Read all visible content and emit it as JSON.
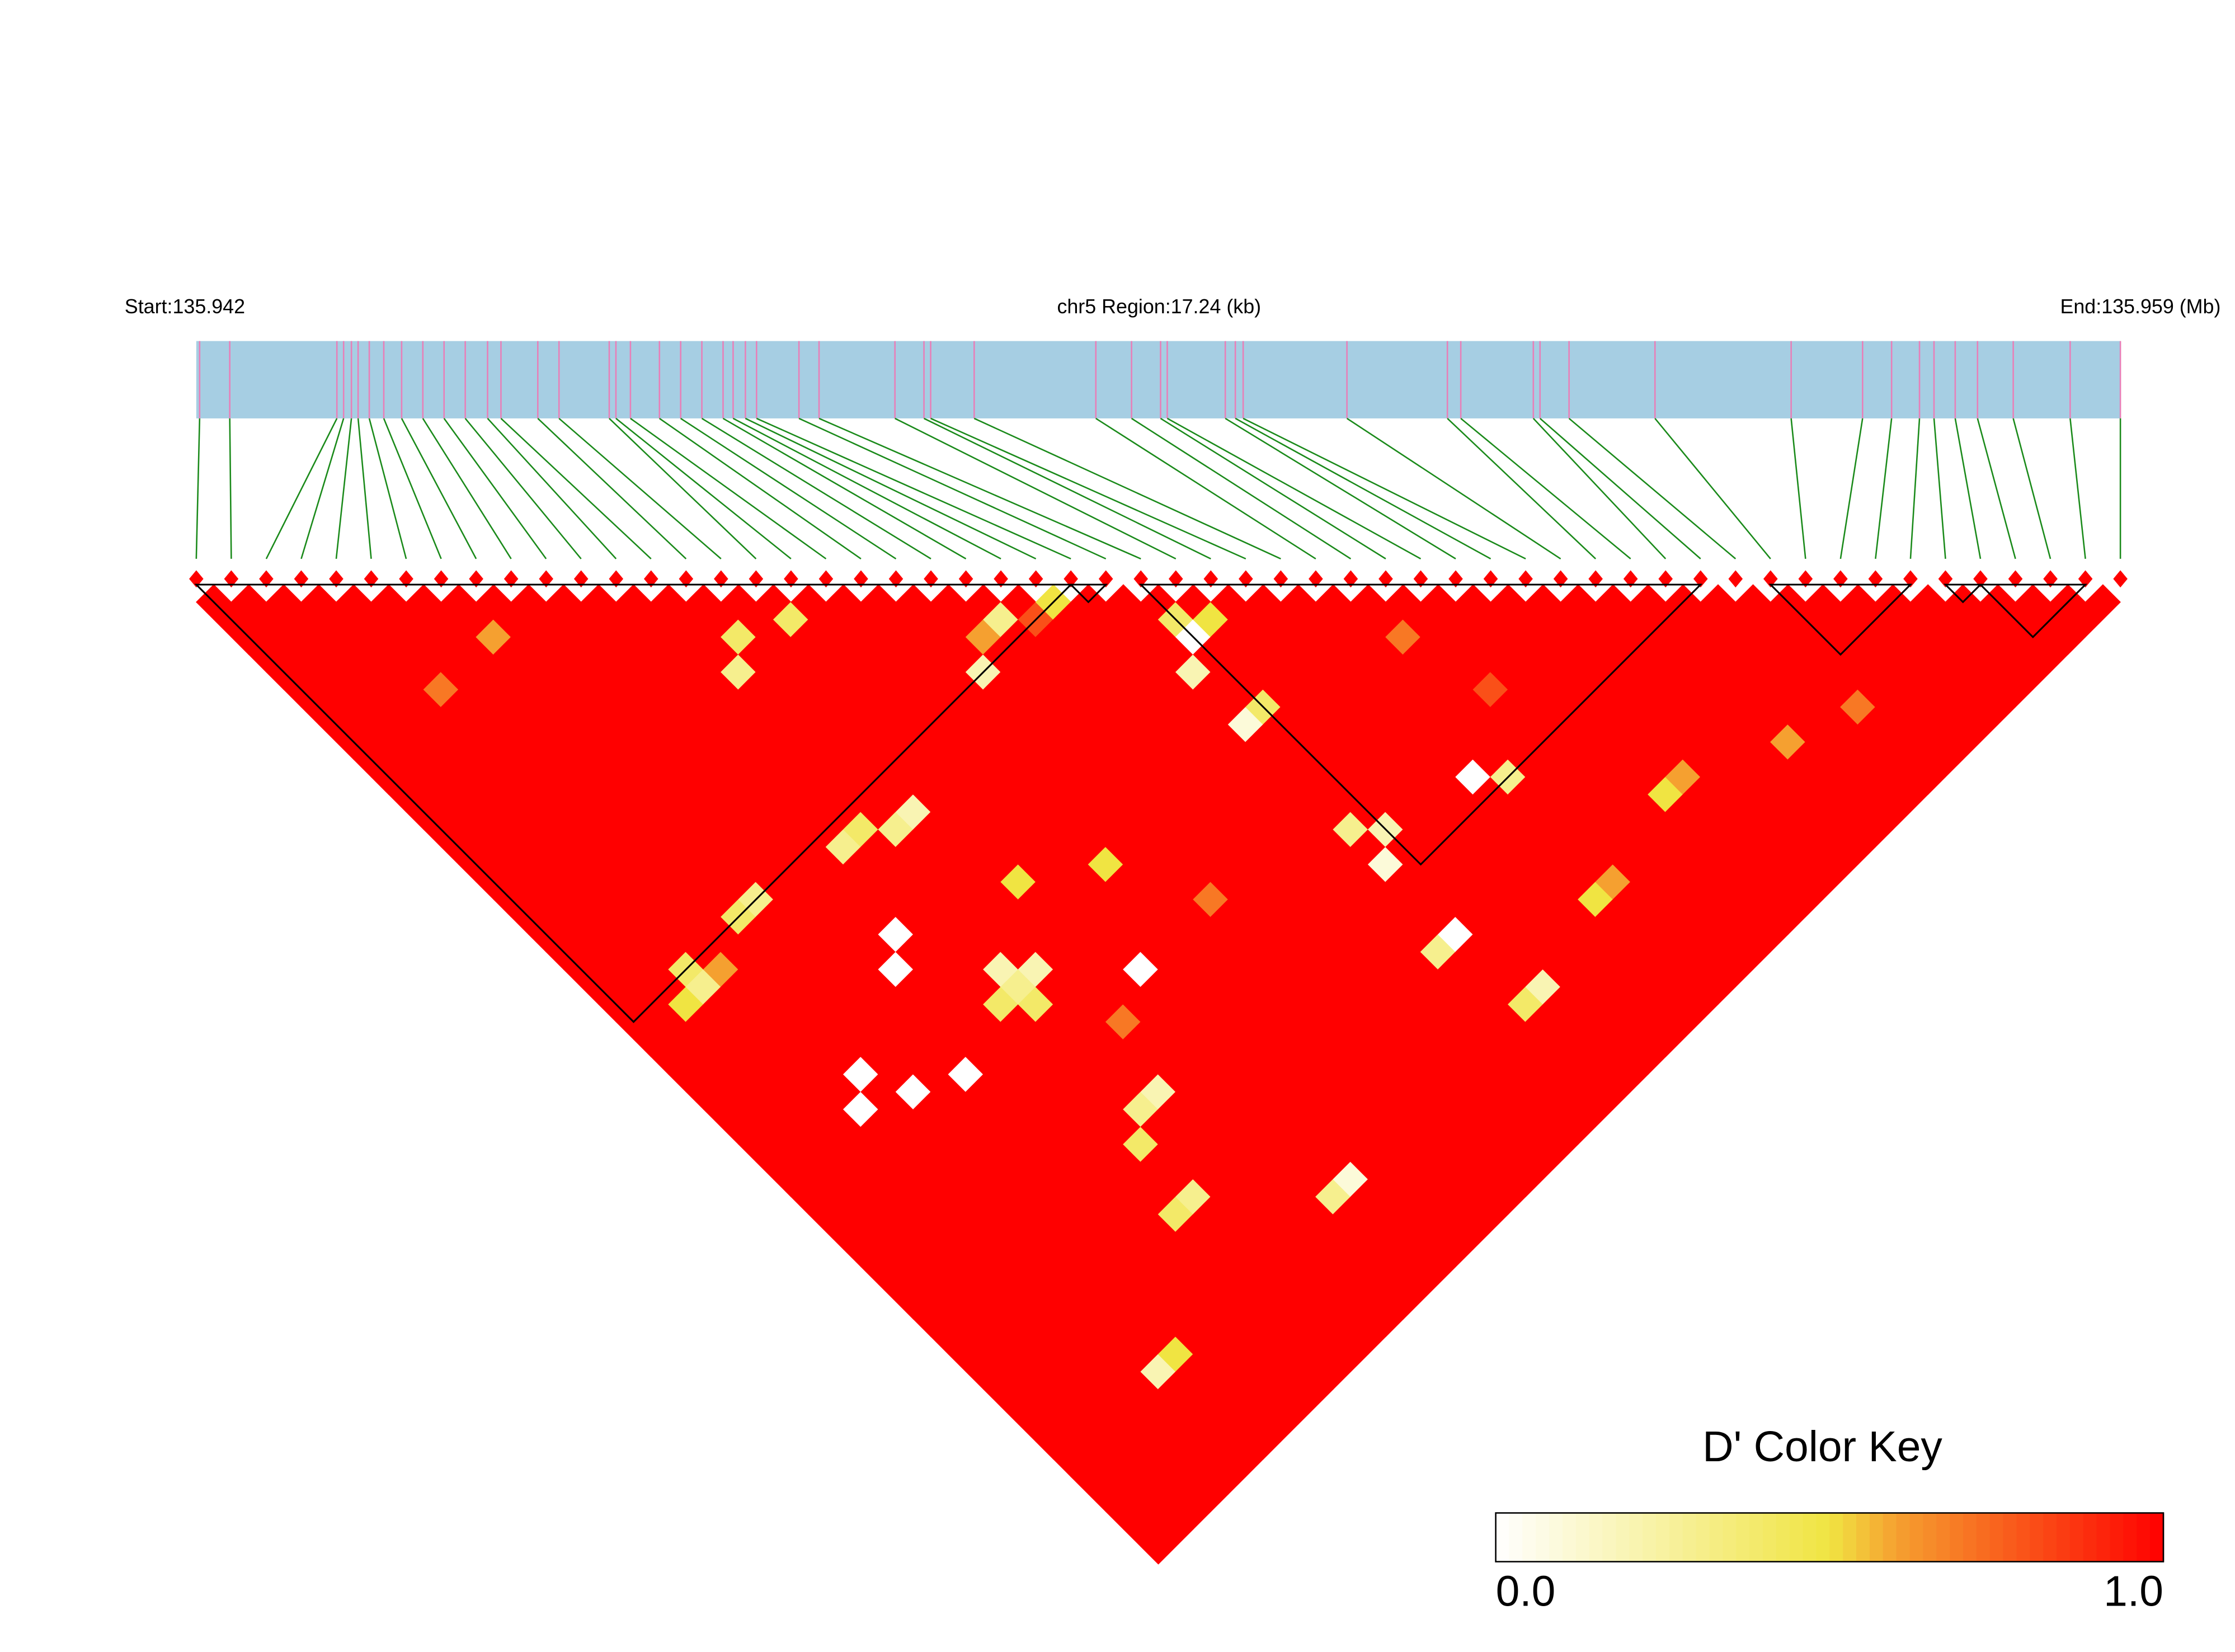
{
  "chart_data": {
    "type": "heatmap",
    "start_label": "Start:135.942",
    "region_label": "chr5 Region:17.24 (kb)",
    "end_label": "End:135.959 (Mb)",
    "key_title": "D' Color Key",
    "key_ticks": [
      {
        "value": 0,
        "label": "0.0"
      },
      {
        "value": 1,
        "label": "1.0"
      }
    ],
    "xlim": [
      0,
      17.24
    ],
    "positions": [
      0.03,
      0.3,
      1.26,
      1.32,
      1.39,
      1.45,
      1.55,
      1.68,
      1.84,
      2.03,
      2.22,
      2.41,
      2.61,
      2.73,
      3.06,
      3.25,
      3.7,
      3.76,
      3.89,
      4.15,
      4.34,
      4.53,
      4.72,
      4.81,
      4.92,
      5.02,
      5.4,
      5.58,
      6.26,
      6.52,
      6.58,
      6.97,
      8.06,
      8.38,
      8.64,
      8.7,
      9.22,
      9.31,
      9.38,
      10.31,
      11.21,
      11.33,
      11.98,
      12.04,
      12.3,
      13.07,
      14.29,
      14.93,
      15.19,
      15.44,
      15.57,
      15.76,
      15.96,
      16.28,
      16.79,
      17.24
    ],
    "colors": {
      "low": "#ffffff",
      "mid": "#f0e442",
      "high_mid": "#f5a030",
      "high": "#ff0000"
    },
    "blocks": [
      [
        0,
        25
      ],
      [
        25,
        26
      ],
      [
        27,
        43
      ],
      [
        45,
        49
      ],
      [
        50,
        51
      ],
      [
        51,
        54
      ]
    ],
    "dprime": [
      [
        1,
        1,
        1,
        1,
        1,
        1,
        1,
        1,
        1,
        1,
        1,
        1,
        1,
        1,
        1,
        1,
        1,
        1,
        1,
        1,
        1,
        1,
        1,
        1,
        1,
        1,
        1,
        1,
        1,
        1,
        1,
        1,
        1,
        1,
        1,
        1,
        1,
        1,
        1,
        1,
        1,
        1,
        1,
        1,
        1,
        1,
        1,
        1,
        1,
        1,
        1,
        1,
        1,
        1,
        1
      ],
      [
        1,
        1,
        1,
        1,
        1,
        1,
        1,
        1,
        1,
        1,
        1,
        1,
        1,
        1,
        1,
        1,
        1,
        1,
        1,
        1,
        1,
        1,
        1,
        1,
        1,
        1,
        1,
        1,
        1,
        1,
        1,
        1,
        1,
        1,
        1,
        1,
        1,
        1,
        1,
        1,
        1,
        1,
        1,
        1,
        1,
        1,
        1,
        1,
        1,
        1,
        1,
        1,
        1,
        1
      ],
      [
        1,
        1,
        1,
        1,
        1,
        1,
        1,
        1,
        1,
        1,
        1,
        1,
        1,
        1,
        1,
        1,
        1,
        1,
        1,
        1,
        1,
        1,
        1,
        0.5,
        1,
        1,
        1,
        1,
        1,
        1,
        1,
        1,
        1,
        1,
        1,
        1,
        1,
        1,
        1,
        1,
        1,
        1,
        1,
        1,
        1,
        1,
        1,
        1,
        1,
        1,
        1,
        1,
        1
      ],
      [
        1,
        1,
        1,
        1,
        1,
        1,
        1,
        1,
        1,
        1,
        1,
        1,
        1,
        1,
        1,
        1,
        1,
        1,
        1,
        1,
        1,
        0.4,
        0.3,
        1,
        1,
        1,
        1,
        1,
        1,
        1,
        1,
        1,
        1,
        1,
        1,
        1,
        1,
        1,
        1,
        1,
        1,
        1,
        1,
        1,
        1,
        1,
        1,
        1,
        1,
        1,
        1,
        1
      ],
      [
        1,
        1,
        1,
        1,
        1,
        0.7,
        1,
        1,
        1,
        1,
        1,
        1,
        1,
        1,
        1,
        1,
        1,
        1,
        1,
        1,
        1,
        0.6,
        1,
        1,
        1,
        1,
        1,
        1,
        1,
        0,
        1,
        1,
        1,
        1,
        1,
        1,
        1,
        1,
        1,
        1,
        1,
        1,
        1,
        1,
        1,
        1,
        1,
        1,
        1,
        1,
        1
      ],
      [
        1,
        1,
        1,
        1,
        1,
        1,
        1,
        1,
        1,
        1,
        1,
        1,
        1,
        1,
        1,
        1,
        1,
        1,
        1,
        1,
        1,
        1,
        1,
        1,
        1,
        1,
        1,
        0,
        1,
        1,
        1,
        1,
        1,
        1,
        1,
        1,
        1,
        1,
        1,
        1,
        1,
        1,
        1,
        1,
        0.2,
        1,
        1,
        1,
        1,
        1
      ],
      [
        1,
        1,
        1,
        1,
        1,
        1,
        1,
        1,
        1,
        1,
        1,
        1,
        1,
        1,
        1,
        1,
        1,
        1,
        0.4,
        1,
        1,
        1,
        1,
        1,
        1,
        1,
        1,
        1,
        0,
        1,
        1,
        1,
        1,
        1,
        1,
        1,
        1,
        1,
        1,
        1,
        1,
        1,
        1,
        0.5,
        1,
        1,
        1,
        1,
        1
      ],
      [
        1,
        1,
        0.6,
        1,
        1,
        1,
        1,
        1,
        1,
        1,
        1,
        1,
        1,
        1,
        1,
        1,
        1,
        0.3,
        1,
        1,
        1,
        1,
        1,
        1,
        1,
        1,
        1,
        1,
        1,
        1,
        1,
        1,
        1,
        1,
        1,
        1,
        1,
        1,
        1,
        1,
        1,
        1,
        1,
        1,
        1,
        1,
        1,
        1
      ],
      [
        1,
        1,
        1,
        1,
        1,
        1,
        1,
        1,
        1,
        1,
        1,
        1,
        1,
        1,
        1,
        1,
        1,
        1,
        1,
        1,
        1,
        1,
        1,
        1,
        1,
        1,
        1,
        0,
        1,
        1,
        1,
        1,
        1,
        1,
        1,
        1,
        1,
        1,
        1,
        1,
        1,
        1,
        1,
        1,
        1,
        1,
        1
      ],
      [
        1,
        1,
        1,
        1,
        1,
        1,
        1,
        1,
        1,
        1,
        1,
        1,
        1,
        1,
        1,
        1,
        1,
        1,
        1,
        1,
        1,
        0,
        1,
        1,
        1,
        1,
        1,
        1,
        1,
        1,
        1,
        1,
        1,
        1,
        1,
        1,
        1,
        1,
        1,
        1,
        1,
        1,
        1,
        1,
        1,
        1
      ],
      [
        1,
        1,
        1,
        1,
        1,
        1,
        1,
        1,
        1,
        1,
        1,
        1,
        1,
        1,
        1,
        1,
        1,
        1,
        1,
        0,
        1,
        1,
        1,
        1,
        1,
        1,
        1,
        1,
        1,
        1,
        1,
        1,
        1,
        1,
        1,
        0.4,
        1,
        1,
        1,
        1,
        1,
        1,
        1,
        1,
        1
      ],
      [
        1,
        1,
        1,
        1,
        1,
        1,
        1,
        1,
        1,
        1,
        1,
        1,
        1,
        1,
        0.3,
        1,
        1,
        1,
        1,
        1,
        1,
        1,
        1,
        0.4,
        1,
        1,
        1,
        1,
        1,
        1,
        1,
        0.4,
        1,
        1,
        0.3,
        1,
        1,
        1,
        1,
        1,
        1,
        1,
        1,
        1
      ],
      [
        1,
        1,
        1,
        1,
        1,
        1,
        1,
        1,
        1,
        1,
        1,
        1,
        1,
        0.4,
        1,
        1,
        1,
        1,
        1,
        1,
        1,
        0.2,
        0.3,
        0.4,
        1,
        1,
        1,
        1,
        1,
        0.3,
        1,
        1,
        1,
        1,
        1,
        1,
        1,
        1,
        1,
        1,
        1,
        1,
        1
      ],
      [
        1,
        1,
        1,
        1,
        0.3,
        1,
        1,
        1,
        1,
        1,
        1,
        1,
        1,
        0.3,
        1,
        1,
        1,
        1,
        1,
        1,
        1,
        0.2,
        1,
        1,
        1,
        1,
        1,
        1,
        0.2,
        1,
        1,
        1,
        1,
        1,
        1,
        1,
        1,
        1,
        1,
        1,
        1,
        1
      ],
      [
        1,
        1,
        0.4,
        1,
        1,
        1,
        1,
        1,
        1,
        1,
        1,
        1,
        0.2,
        1,
        1,
        1,
        1,
        1,
        1,
        1,
        1,
        1,
        1,
        1,
        0.7,
        1,
        1,
        1,
        1,
        1,
        1,
        1,
        1,
        1,
        1,
        1,
        1,
        1,
        1,
        1,
        1
      ],
      [
        1,
        1,
        1,
        1,
        1,
        1,
        1,
        1,
        1,
        1,
        1,
        1,
        1,
        1,
        1,
        1,
        0.5,
        1,
        1,
        1,
        1,
        1,
        1,
        1,
        1,
        1,
        1,
        1,
        1,
        1,
        1,
        1,
        1,
        1,
        0.3,
        1,
        1,
        1,
        1,
        1
      ],
      [
        1,
        0.4,
        1,
        1,
        1,
        1,
        1,
        1,
        1,
        1,
        1,
        1,
        1,
        1,
        1,
        1,
        1,
        1,
        1,
        1,
        1,
        0,
        1,
        1,
        1,
        1,
        1,
        1,
        1,
        1,
        1,
        1,
        1,
        0.1,
        1,
        1,
        1,
        1,
        1
      ],
      [
        1,
        1,
        1,
        1,
        1,
        1,
        1,
        1,
        1,
        1,
        1,
        1,
        1,
        1,
        1,
        1,
        1,
        1,
        1,
        1,
        1,
        1,
        1,
        1,
        1,
        1,
        1,
        1,
        1,
        1,
        1,
        1,
        1,
        1,
        1,
        1,
        1,
        1
      ],
      [
        1,
        1,
        1,
        1,
        1,
        1,
        1,
        1,
        1,
        1,
        1,
        1,
        1,
        1,
        1,
        0.5,
        1,
        1,
        1,
        1,
        1,
        1,
        1,
        1,
        1,
        1,
        1,
        1,
        1,
        1,
        1,
        1,
        1,
        1,
        1,
        1,
        1
      ],
      [
        1,
        1,
        1,
        1,
        1,
        1,
        1,
        1,
        1,
        1,
        1,
        1,
        1,
        1,
        1,
        1,
        1,
        1,
        1,
        1,
        1,
        1,
        1,
        1,
        1,
        1,
        1,
        1,
        1,
        1,
        1,
        1,
        1,
        1,
        1,
        1
      ],
      [
        1,
        1,
        1,
        1,
        0.2,
        1,
        1,
        1,
        1,
        1,
        1,
        1,
        1,
        1,
        1,
        1,
        1,
        0.7,
        1,
        1,
        1,
        1,
        1,
        1,
        1,
        1,
        1,
        1,
        1,
        1,
        1,
        1,
        1,
        1,
        1
      ],
      [
        1,
        1,
        0.6,
        1,
        1,
        1,
        1,
        1,
        1,
        1,
        1,
        1,
        1,
        1,
        1,
        1,
        1,
        1,
        1,
        1,
        1,
        1,
        1,
        1,
        1,
        1,
        1,
        1,
        1,
        1,
        1,
        1,
        1,
        1
      ],
      [
        1,
        0.3,
        1,
        1,
        1,
        1,
        1,
        1,
        1,
        1,
        1,
        1,
        1,
        1,
        1,
        1,
        1,
        1,
        1,
        1,
        1,
        1,
        1,
        1,
        1,
        1,
        1,
        1,
        1,
        1,
        1,
        1,
        1
      ],
      [
        1,
        0.8,
        1,
        1,
        1,
        1,
        1,
        1,
        1,
        1,
        1,
        1,
        1,
        1,
        1,
        1,
        1,
        1,
        1,
        1,
        1,
        1,
        1,
        1,
        1,
        1,
        1,
        1,
        1,
        1,
        1,
        1
      ],
      [
        0.5,
        1,
        1,
        1,
        1,
        1,
        1,
        1,
        1,
        1,
        1,
        1,
        1,
        1,
        1,
        1,
        1,
        1,
        1,
        1,
        1,
        1,
        1,
        1,
        1,
        1,
        1,
        1,
        1,
        1,
        1
      ],
      [
        1,
        1,
        1,
        1,
        1,
        1,
        1,
        1,
        1,
        1,
        1,
        1,
        1,
        1,
        1,
        1,
        1,
        1,
        1,
        1,
        0.3,
        1,
        1,
        1,
        1,
        1,
        1,
        1,
        1,
        1
      ],
      [
        1,
        1,
        1,
        1,
        0.2,
        1,
        1,
        0.1,
        1,
        1,
        1,
        1,
        1,
        0.3,
        1,
        0.1,
        1,
        1,
        1,
        0,
        1,
        1,
        1,
        0.4,
        1,
        1,
        1,
        1,
        1
      ],
      [
        1,
        0.4,
        0,
        1,
        1,
        1,
        0.4,
        1,
        1,
        1,
        1,
        1,
        1,
        0.2,
        1,
        1,
        1,
        1,
        1,
        1,
        1,
        1,
        0.2,
        1,
        1,
        1,
        1,
        1
      ],
      [
        1,
        0.5,
        1,
        1,
        1,
        1,
        1,
        1,
        1,
        1,
        1,
        1,
        1,
        1,
        1,
        1,
        1,
        1,
        1,
        1,
        1,
        1,
        1,
        1,
        1,
        1,
        1
      ],
      [
        1,
        1,
        1,
        1,
        1,
        1,
        1,
        1,
        1,
        1,
        1,
        1,
        1,
        1,
        1,
        1,
        1,
        1,
        1,
        1,
        1,
        1,
        1,
        1,
        1,
        1
      ],
      [
        1,
        1,
        1,
        1,
        1,
        1,
        1,
        1,
        1,
        1,
        1,
        1,
        1,
        1,
        1,
        1,
        1,
        1,
        1,
        1,
        1,
        1,
        1,
        1,
        1
      ],
      [
        1,
        1,
        1,
        1,
        1,
        1,
        1,
        1,
        1,
        1,
        0,
        1,
        1,
        1,
        1,
        1,
        1,
        0.5,
        1,
        1,
        1,
        1,
        1,
        1
      ],
      [
        1,
        1,
        1,
        1,
        1,
        1,
        1,
        1,
        1,
        1,
        0.3,
        1,
        1,
        1,
        1,
        1,
        0.6,
        1,
        1,
        1,
        1,
        1,
        1
      ],
      [
        1,
        1,
        0.7,
        1,
        1,
        1,
        1,
        1,
        1,
        1,
        1,
        1,
        1,
        1,
        1,
        1,
        1,
        1,
        1,
        1,
        1,
        1
      ],
      [
        1,
        1,
        1,
        1,
        1,
        0.8,
        1,
        1,
        1,
        1,
        1,
        1,
        1,
        1,
        1,
        1,
        1,
        1,
        1,
        1,
        1
      ],
      [
        1,
        1,
        1,
        1,
        1,
        1,
        1,
        1,
        1,
        1,
        1,
        1,
        1,
        1,
        1,
        1,
        1,
        1,
        1,
        1
      ],
      [
        1,
        1,
        1,
        1,
        1,
        1,
        1,
        1,
        1,
        1,
        1,
        0.5,
        1,
        1,
        1,
        1,
        1,
        1,
        1
      ],
      [
        1,
        1,
        1,
        1,
        1,
        1,
        1,
        1,
        1,
        1,
        0.6,
        1,
        1,
        1,
        1,
        1,
        1,
        1
      ],
      [
        1,
        1,
        1,
        1,
        1,
        1,
        1,
        1,
        1,
        1,
        1,
        1,
        1,
        1,
        1,
        1,
        1
      ],
      [
        1,
        1,
        1,
        1,
        1,
        1,
        1,
        1,
        1,
        1,
        1,
        1,
        1,
        1,
        1,
        1
      ],
      [
        1,
        1,
        1,
        1,
        1,
        1,
        1,
        1,
        1,
        1,
        1,
        1,
        1,
        1,
        1
      ],
      [
        1,
        1,
        1,
        1,
        1,
        1,
        1,
        1,
        0.6,
        1,
        1,
        1,
        1,
        1
      ],
      [
        1,
        1,
        1,
        1,
        1,
        1,
        1,
        1,
        1,
        1,
        1,
        1,
        1
      ],
      [
        1,
        1,
        1,
        1,
        1,
        1,
        1,
        1,
        1,
        1,
        1,
        1
      ],
      [
        1,
        1,
        1,
        1,
        1,
        1,
        0.7,
        1,
        1,
        1,
        1
      ],
      [
        1,
        1,
        1,
        1,
        1,
        1,
        1,
        1,
        1,
        1
      ],
      [
        1,
        1,
        1,
        1,
        1,
        1,
        1,
        1,
        1
      ],
      [
        1,
        1,
        1,
        1,
        1,
        1,
        1,
        1
      ],
      [
        1,
        1,
        1,
        1,
        1,
        1,
        1
      ],
      [
        1,
        1,
        1,
        1,
        1,
        1
      ],
      [
        1,
        1,
        1,
        1,
        1
      ],
      [
        1,
        1,
        1,
        1
      ],
      [
        1,
        1,
        1
      ],
      [
        1,
        1
      ],
      [
        1
      ]
    ]
  }
}
